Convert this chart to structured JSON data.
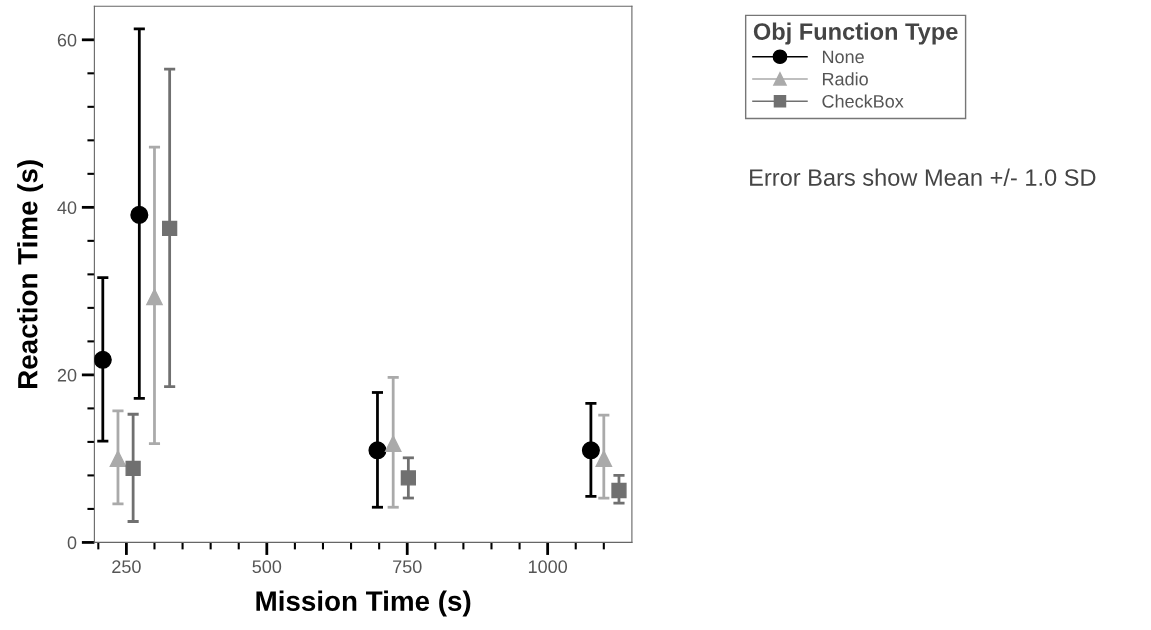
{
  "chart_data": {
    "type": "scatter",
    "xlabel": "Mission Time (s)",
    "ylabel": "Reaction Time (s)",
    "legend_title": "Obj Function Type",
    "annotations": [
      "Error Bars show Mean +/- 1.0 SD"
    ],
    "series": [
      {
        "name": "None",
        "color": "#000000",
        "marker": "circle",
        "x": [
          208,
          273,
          697,
          1077
        ],
        "values": [
          21.8,
          39.1,
          11.0,
          11.0
        ],
        "errors": [
          [
            12.1,
            31.6
          ],
          [
            17.2,
            61.3
          ],
          [
            4.2,
            17.9
          ],
          [
            5.5,
            16.6
          ]
        ]
      },
      {
        "name": "Radio",
        "color": "#aaaaaa",
        "marker": "triangle",
        "x": [
          235,
          300,
          725,
          1100
        ],
        "values": [
          10.0,
          29.3,
          11.8,
          10.0
        ],
        "errors": [
          [
            4.6,
            15.7
          ],
          [
            11.8,
            47.2
          ],
          [
            4.2,
            19.7
          ],
          [
            5.3,
            15.2
          ]
        ]
      },
      {
        "name": "CheckBox",
        "color": "#707070",
        "marker": "square",
        "x": [
          262,
          327,
          752,
          1127
        ],
        "values": [
          8.85,
          37.5,
          7.7,
          6.2
        ],
        "errors": [
          [
            2.5,
            15.3
          ],
          [
            18.6,
            56.5
          ],
          [
            5.3,
            10.1
          ],
          [
            4.7,
            8.0
          ]
        ]
      }
    ],
    "xlim": [
      193,
      1150
    ],
    "ylim": [
      0,
      64
    ],
    "xticks": [
      {
        "value": 200,
        "label": null
      },
      250,
      {
        "value": 300,
        "label": null
      },
      {
        "value": 350,
        "label": null
      },
      {
        "value": 400,
        "label": null
      },
      {
        "value": 450,
        "label": null
      },
      500,
      {
        "value": 550,
        "label": null
      },
      {
        "value": 600,
        "label": null
      },
      {
        "value": 650,
        "label": null
      },
      {
        "value": 700,
        "label": null
      },
      750,
      {
        "value": 800,
        "label": null
      },
      {
        "value": 850,
        "label": null
      },
      {
        "value": 900,
        "label": null
      },
      {
        "value": 950,
        "label": null
      },
      1000,
      {
        "value": 1050,
        "label": null
      },
      {
        "value": 1100,
        "label": null
      }
    ],
    "yticks": [
      0,
      {
        "value": 4,
        "label": null
      },
      {
        "value": 8,
        "label": null
      },
      {
        "value": 12,
        "label": null
      },
      {
        "value": 16,
        "label": null
      },
      20,
      {
        "value": 24,
        "label": null
      },
      {
        "value": 28,
        "label": null
      },
      {
        "value": 32,
        "label": null
      },
      {
        "value": 36,
        "label": null
      },
      40,
      {
        "value": 44,
        "label": null
      },
      {
        "value": 48,
        "label": null
      },
      {
        "value": 52,
        "label": null
      },
      {
        "value": 56,
        "label": null
      },
      60
    ],
    "grid": false,
    "legend": "right"
  }
}
